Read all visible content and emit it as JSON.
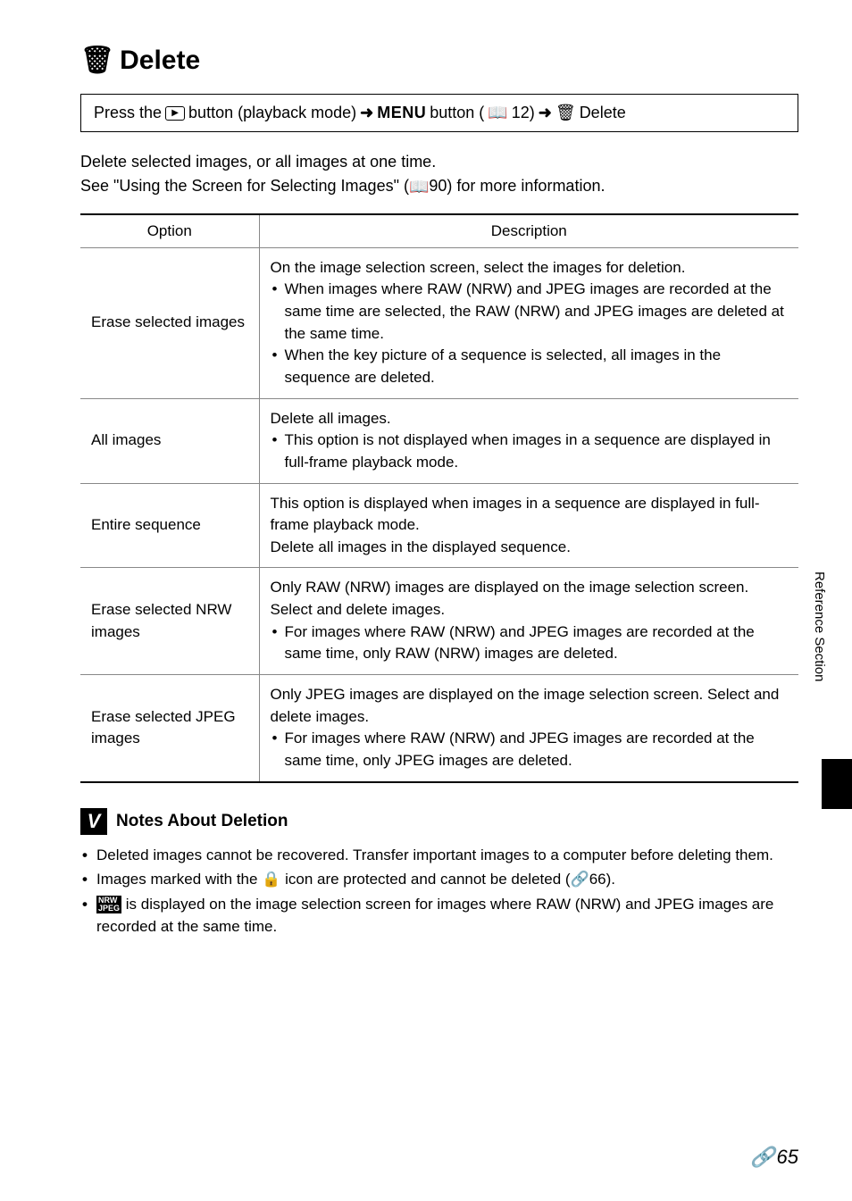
{
  "title_icon": "🗑",
  "title_text": "Delete",
  "press_line": {
    "prefix": "Press the",
    "play_glyph": "▶",
    "play_label": "button (playback mode)",
    "arrow": "➜",
    "menu_label": "MENU",
    "menu_suffix": "button (",
    "menu_ref": "12)",
    "arrow2": "➜",
    "delete_icon": "🗑",
    "delete_label": "Delete"
  },
  "intro_line1": "Delete selected images, or all images at one time.",
  "intro_line2_a": "See \"Using the Screen for Selecting Images\" (",
  "intro_line2_ref": "90) for more information.",
  "table_headers": {
    "option": "Option",
    "description": "Description"
  },
  "rows": [
    {
      "option": "Erase selected images",
      "desc_lead": "On the image selection screen, select the images for deletion.",
      "bullets": [
        "When images where RAW (NRW) and JPEG images are recorded at the same time are selected, the RAW (NRW) and JPEG images are deleted at the same time.",
        "When the key picture of a sequence is selected, all images in the sequence are deleted."
      ]
    },
    {
      "option": "All images",
      "desc_lead": "Delete all images.",
      "bullets": [
        "This option is not displayed when images in a sequence are displayed in full-frame playback mode."
      ]
    },
    {
      "option": "Entire sequence",
      "desc_plain": "This option is displayed when images in a sequence are displayed in full-frame playback mode.\nDelete all images in the displayed sequence."
    },
    {
      "option": "Erase selected NRW images",
      "desc_lead": "Only RAW (NRW) images are displayed on the image selection screen. Select and delete images.",
      "bullets": [
        "For images where RAW (NRW) and JPEG images are recorded at the same time, only RAW (NRW) images are deleted."
      ]
    },
    {
      "option": "Erase selected JPEG images",
      "desc_lead": "Only JPEG images are displayed on the image selection screen. Select and delete images.",
      "bullets": [
        "For images where RAW (NRW) and JPEG images are recorded at the same time, only JPEG images are deleted."
      ]
    }
  ],
  "notes_title": "Notes About Deletion",
  "notes": {
    "n1": "Deleted images cannot be recovered. Transfer important images to a computer before deleting them.",
    "n2a": "Images marked with the ",
    "n2_icon": "🔒",
    "n2b": " icon are protected and cannot be deleted (",
    "n2_ref": "66).",
    "n3a": " is displayed on the image selection screen for images where RAW (NRW) and JPEG images are recorded at the same time."
  },
  "side_tab": "Reference Section",
  "page_number": "65",
  "page_prefix_icon": "🔗"
}
